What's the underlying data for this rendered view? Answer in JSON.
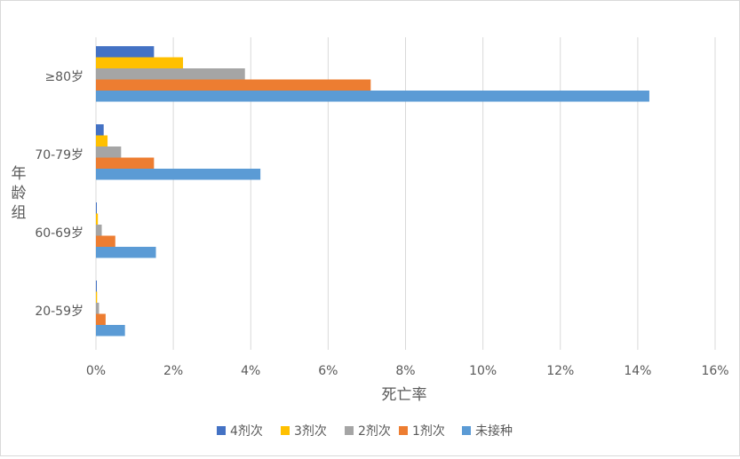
{
  "chart_data": {
    "type": "bar",
    "orientation": "horizontal",
    "xlabel": "死亡率",
    "ylabel": "年龄组",
    "categories": [
      "≥80岁",
      "70-79岁",
      "60-69岁",
      "20-59岁"
    ],
    "xlim": [
      0,
      16
    ],
    "xticks": [
      0,
      2,
      4,
      6,
      8,
      10,
      12,
      14,
      16
    ],
    "xtick_labels": [
      "0%",
      "2%",
      "4%",
      "6%",
      "8%",
      "10%",
      "12%",
      "14%",
      "16%"
    ],
    "grid": "vertical",
    "legend_position": "bottom",
    "series": [
      {
        "name": "4剂次",
        "color": "#4472C4",
        "values": [
          1.5,
          0.2,
          0.02,
          0.02
        ]
      },
      {
        "name": "3剂次",
        "color": "#FFC000",
        "values": [
          2.25,
          0.3,
          0.05,
          0.03
        ]
      },
      {
        "name": "2剂次",
        "color": "#A5A5A5",
        "values": [
          3.85,
          0.65,
          0.15,
          0.08
        ]
      },
      {
        "name": "1剂次",
        "color": "#ED7D31",
        "values": [
          7.1,
          1.5,
          0.5,
          0.25
        ]
      },
      {
        "name": "未接种",
        "color": "#5B9BD5",
        "values": [
          14.3,
          4.25,
          1.55,
          0.75
        ]
      }
    ]
  }
}
